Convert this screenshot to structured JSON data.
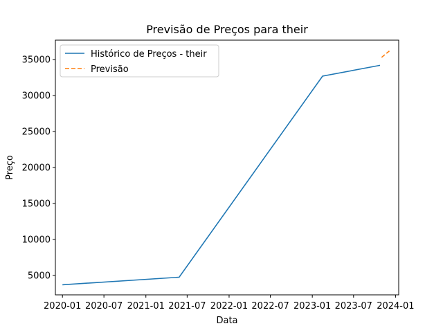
{
  "chart_data": {
    "type": "line",
    "title": "Previsão de Preços para their",
    "xlabel": "Data",
    "ylabel": "Preço",
    "x_axis_type": "date",
    "xlim": [
      "2019-12-01",
      "2024-01-15"
    ],
    "ylim": [
      2300,
      37700
    ],
    "x_ticks": [
      {
        "date": "2020-01-01",
        "label": "2020-01"
      },
      {
        "date": "2020-07-01",
        "label": "2020-07"
      },
      {
        "date": "2021-01-01",
        "label": "2021-01"
      },
      {
        "date": "2021-07-01",
        "label": "2021-07"
      },
      {
        "date": "2022-01-01",
        "label": "2022-01"
      },
      {
        "date": "2022-07-01",
        "label": "2022-07"
      },
      {
        "date": "2023-01-01",
        "label": "2023-01"
      },
      {
        "date": "2023-07-01",
        "label": "2023-07"
      },
      {
        "date": "2024-01-01",
        "label": "2024-01"
      }
    ],
    "y_ticks": [
      5000,
      10000,
      15000,
      20000,
      25000,
      30000,
      35000
    ],
    "grid": false,
    "legend_position": "top-left",
    "series": [
      {
        "name": "Histórico de Preços - their",
        "color": "#1f77b4",
        "style": "solid",
        "points": [
          {
            "x": "2020-01-01",
            "y": 3700
          },
          {
            "x": "2021-05-27",
            "y": 4750
          },
          {
            "x": "2023-02-15",
            "y": 32700
          },
          {
            "x": "2023-10-25",
            "y": 34200
          }
        ]
      },
      {
        "name": "Previsão",
        "color": "#ff7f0e",
        "style": "dashed",
        "points": [
          {
            "x": "2023-11-01",
            "y": 35300
          },
          {
            "x": "2023-12-05",
            "y": 36200
          }
        ]
      }
    ]
  }
}
